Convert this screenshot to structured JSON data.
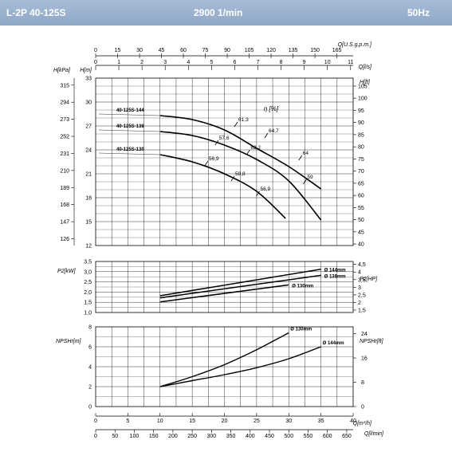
{
  "header": {
    "model": "L-2P 40-125S",
    "speed": "2900 1/min",
    "frequency": "50Hz"
  },
  "colors": {
    "header_background": "#95adca",
    "header_text": "#ffffff",
    "curve": "#000000",
    "grid": "#000000"
  },
  "chart_data": [
    {
      "type": "line",
      "name": "head",
      "x_unit": "m³/h",
      "xlim": [
        0,
        40
      ],
      "ylim": [
        12,
        33
      ],
      "y_ticks": [
        12,
        15,
        18,
        21,
        24,
        27,
        30,
        33
      ],
      "ylabel_left": "H[m]",
      "ylabel_left2": "H[kPa]",
      "kpa_ticks": [
        "315",
        "294",
        "273",
        "252",
        "231",
        "210",
        "189",
        "168",
        "147",
        "126"
      ],
      "ylabel_right": "H[ft]",
      "ft_ticks": [
        "105",
        "100",
        "95",
        "90",
        "85",
        "80",
        "75",
        "70",
        "65",
        "60",
        "55",
        "50",
        "45",
        "40"
      ],
      "top_axis_1": {
        "label": "Q[U.S.g.p.m.]",
        "ticks": [
          "0",
          "15",
          "30",
          "45",
          "60",
          "75",
          "90",
          "105",
          "120",
          "135",
          "150",
          "165"
        ]
      },
      "top_axis_2": {
        "label": "Q[l/s]",
        "ticks": [
          "0",
          "1",
          "2",
          "3",
          "4",
          "5",
          "6",
          "7",
          "8",
          "9",
          "10",
          "11"
        ]
      },
      "series": [
        {
          "name": "40-125S-144",
          "x": [
            10,
            15,
            20,
            25,
            30,
            35
          ],
          "y": [
            28.3,
            27.8,
            26.5,
            24.2,
            21.9,
            19.1
          ]
        },
        {
          "name": "40-125S-138",
          "x": [
            10,
            15,
            20,
            25,
            30,
            35
          ],
          "y": [
            26.3,
            25.8,
            24.6,
            22.8,
            20.1,
            15.2
          ]
        },
        {
          "name": "40-125S-130",
          "x": [
            10,
            15,
            20,
            25,
            29.5
          ],
          "y": [
            23.4,
            22.5,
            21.0,
            18.8,
            15.4
          ]
        }
      ],
      "efficiency_label": "η [%]",
      "efficiency_marks": [
        {
          "label": "61,3",
          "x": 21.8,
          "y": 27.2
        },
        {
          "label": "64,7",
          "x": 26.5,
          "y": 25.8
        },
        {
          "label": "64",
          "x": 31.8,
          "y": 23.0
        },
        {
          "label": "57,6",
          "x": 18.8,
          "y": 24.9
        },
        {
          "label": "62,2",
          "x": 23.7,
          "y": 23.7
        },
        {
          "label": "59",
          "x": 32.5,
          "y": 20.0
        },
        {
          "label": "56,9",
          "x": 17.2,
          "y": 22.3
        },
        {
          "label": "58,8",
          "x": 21.3,
          "y": 20.4
        },
        {
          "label": "56,9",
          "x": 25.2,
          "y": 18.5
        }
      ]
    },
    {
      "type": "line",
      "name": "power",
      "x_unit": "m³/h",
      "xlim": [
        0,
        40
      ],
      "ylim": [
        1.0,
        3.5
      ],
      "ylabel_left": "P2[kW]",
      "y_ticks": [
        "1,0",
        "1,5",
        "2,0",
        "2,5",
        "3,0",
        "3,5"
      ],
      "ylabel_right": "P2[HP]",
      "hp_ticks": [
        "1,5",
        "2",
        "2,5",
        "3",
        "3,5",
        "4",
        "4,5"
      ],
      "series": [
        {
          "name": "Ø 144mm",
          "x": [
            10,
            35
          ],
          "y": [
            1.82,
            3.12
          ]
        },
        {
          "name": "Ø 138mm",
          "x": [
            10,
            35
          ],
          "y": [
            1.72,
            2.82
          ]
        },
        {
          "name": "Ø 130mm",
          "x": [
            10,
            30
          ],
          "y": [
            1.52,
            2.35
          ]
        }
      ]
    },
    {
      "type": "line",
      "name": "npsh",
      "x_unit": "m³/h",
      "xlim": [
        0,
        40
      ],
      "ylim": [
        0,
        8
      ],
      "ylabel_left": "NPSHr[m]",
      "y_ticks": [
        "0",
        "2",
        "4",
        "6",
        "8"
      ],
      "ylabel_right": "NPSHr[ft]",
      "ft_ticks": [
        "0",
        "8",
        "16",
        "24"
      ],
      "series": [
        {
          "name": "Ø 130mm",
          "x": [
            10,
            15,
            20,
            25,
            30
          ],
          "y": [
            2.0,
            3.0,
            4.2,
            5.7,
            7.4
          ]
        },
        {
          "name": "Ø 144mm",
          "x": [
            10,
            15,
            20,
            25,
            30,
            35
          ],
          "y": [
            2.0,
            2.6,
            3.2,
            3.9,
            4.8,
            6.0
          ]
        }
      ],
      "bottom_axis_1": {
        "label": "Q[m³/h]",
        "ticks": [
          "0",
          "5",
          "10",
          "15",
          "20",
          "25",
          "30",
          "35",
          "40"
        ]
      },
      "bottom_axis_2": {
        "label": "Q[l/min]",
        "ticks": [
          "0",
          "50",
          "100",
          "150",
          "200",
          "250",
          "300",
          "350",
          "400",
          "450",
          "500",
          "550",
          "600",
          "650"
        ]
      }
    }
  ]
}
